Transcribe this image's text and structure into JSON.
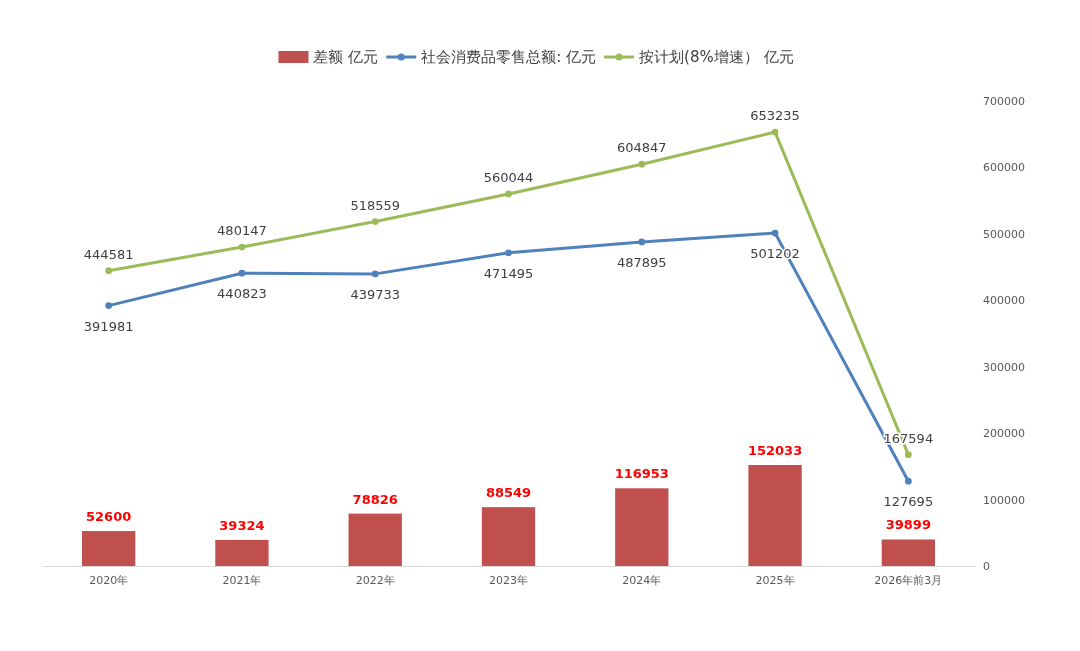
{
  "chart_data": {
    "type": "bar",
    "categories": [
      "2020年",
      "2021年",
      "2022年",
      "2023年",
      "2024年",
      "2025年",
      "2026年前3月"
    ],
    "series": [
      {
        "name": "差额 亿元",
        "color": "#c0504d",
        "values": [
          52600,
          39324,
          78826,
          88549,
          116953,
          152033,
          39899
        ]
      },
      {
        "name": "社会消费品零售总额: 亿元",
        "type": "line",
        "color": "#4f81bd",
        "values": [
          391981,
          440823,
          439733,
          471495,
          487895,
          501202,
          127695
        ]
      },
      {
        "name": "按计划(8%增速） 亿元",
        "type": "line",
        "color": "#9bbb59",
        "values": [
          444581,
          480147,
          518559,
          560044,
          604847,
          653235,
          167594
        ]
      }
    ],
    "ylim": [
      0,
      700000
    ],
    "yticks": [
      0,
      100000,
      200000,
      300000,
      400000,
      500000,
      600000,
      700000
    ],
    "grid": false,
    "legend": "top",
    "marker": "circle",
    "line_style": "solid",
    "data_labels": true
  }
}
